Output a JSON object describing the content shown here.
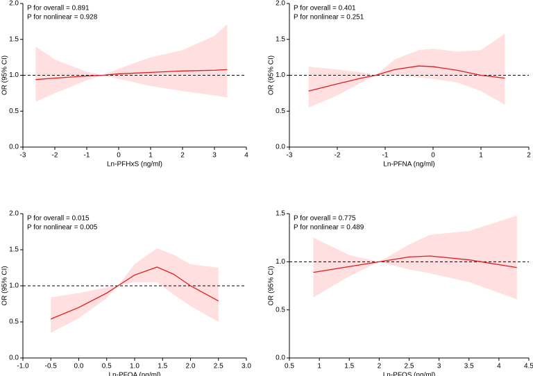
{
  "chart_data": [
    {
      "type": "line",
      "xlabel": "Ln-PFHxS (ng/ml)",
      "ylabel": "OR (95% CI)",
      "annotations": [
        "P for overall = 0.891",
        "P for nonlinear = 0.928"
      ],
      "x": [
        -2.6,
        -2,
        -1,
        -0.5,
        0,
        1,
        2,
        3,
        3.4
      ],
      "values": [
        0.94,
        0.96,
        0.99,
        1.0,
        1.02,
        1.04,
        1.06,
        1.07,
        1.08
      ],
      "lower": [
        0.63,
        0.75,
        0.93,
        1.0,
        0.95,
        0.85,
        0.78,
        0.72,
        0.69
      ],
      "upper": [
        1.4,
        1.22,
        1.05,
        1.0,
        1.09,
        1.25,
        1.35,
        1.55,
        1.71
      ],
      "color": "#e31a1c",
      "band_color": "#ffdfe0",
      "ref_line": 1,
      "xlim": [
        -3,
        4
      ],
      "xticks": [
        -3,
        -2,
        -1,
        0,
        1,
        2,
        3,
        4
      ],
      "ylim": [
        0,
        2
      ],
      "yticks": [
        {
          "value": 0,
          "label": "0.0"
        },
        {
          "value": 0.5,
          "label": "0.5"
        },
        {
          "value": 1,
          "label": "1.0"
        },
        {
          "value": 1.5,
          "label": "1.5"
        },
        {
          "value": 2,
          "label": "2.0"
        }
      ]
    },
    {
      "type": "line",
      "xlabel": "Ln-PFNA (ng/ml)",
      "ylabel": "OR (95% CI)",
      "annotations": [
        "P for overall = 0.401",
        "P for nonlinear = 0.251"
      ],
      "x": [
        -2.6,
        -2,
        -1.5,
        -1.2,
        -0.8,
        -0.3,
        0,
        0.5,
        1,
        1.5
      ],
      "values": [
        0.78,
        0.88,
        0.96,
        1.0,
        1.08,
        1.13,
        1.12,
        1.07,
        1.0,
        0.96
      ],
      "lower": [
        0.55,
        0.72,
        0.9,
        1.0,
        1.0,
        0.97,
        0.95,
        0.9,
        0.78,
        0.59
      ],
      "upper": [
        1.12,
        1.08,
        1.04,
        1.0,
        1.22,
        1.35,
        1.37,
        1.33,
        1.35,
        1.58
      ],
      "color": "#e31a1c",
      "band_color": "#ffdfe0",
      "ref_line": 1,
      "xlim": [
        -3,
        2
      ],
      "xticks": [
        -3,
        -2,
        -1,
        0,
        1,
        2
      ],
      "ylim": [
        0,
        2
      ],
      "yticks": [
        {
          "value": 0,
          "label": "0.0"
        },
        {
          "value": 0.5,
          "label": "0.5"
        },
        {
          "value": 1,
          "label": "1.0"
        },
        {
          "value": 1.5,
          "label": "1.5"
        },
        {
          "value": 2,
          "label": "2.0"
        }
      ]
    },
    {
      "type": "line",
      "xlabel": "Ln-PFOA (ng/ml)",
      "ylabel": "OR (95% CI)",
      "annotations": [
        "P for overall = 0.015",
        "P for nonlinear = 0.005"
      ],
      "x": [
        -0.5,
        0,
        0.5,
        0.7,
        1,
        1.4,
        1.7,
        2,
        2.5
      ],
      "values": [
        0.54,
        0.7,
        0.9,
        1.0,
        1.15,
        1.26,
        1.16,
        1.0,
        0.79
      ],
      "lower": [
        0.35,
        0.55,
        0.83,
        1.0,
        1.05,
        1.05,
        0.88,
        0.72,
        0.5
      ],
      "upper": [
        0.84,
        0.9,
        0.98,
        1.0,
        1.3,
        1.52,
        1.43,
        1.3,
        1.25
      ],
      "color": "#e31a1c",
      "band_color": "#ffdfe0",
      "ref_line": 1,
      "xlim": [
        -1,
        3
      ],
      "xticks": [
        {
          "value": -1,
          "label": "-1.0"
        },
        {
          "value": -0.5,
          "label": "-0.5"
        },
        {
          "value": 0,
          "label": "0.0"
        },
        {
          "value": 0.5,
          "label": "0.5"
        },
        {
          "value": 1,
          "label": "1.0"
        },
        {
          "value": 1.5,
          "label": "1.5"
        },
        {
          "value": 2,
          "label": "2.0"
        },
        {
          "value": 2.5,
          "label": "2.5"
        },
        {
          "value": 3,
          "label": "3.0"
        }
      ],
      "ylim": [
        0,
        2
      ],
      "yticks": [
        {
          "value": 0,
          "label": "0.0"
        },
        {
          "value": 0.5,
          "label": "0.5"
        },
        {
          "value": 1,
          "label": "1.0"
        },
        {
          "value": 1.5,
          "label": "1.5"
        },
        {
          "value": 2,
          "label": "2.0"
        }
      ]
    },
    {
      "type": "line",
      "xlabel": "Ln-PFOS (ng/ml)",
      "ylabel": "OR (95% CI)",
      "annotations": [
        "P for overall = 0.775",
        "P for nonlinear = 0.489"
      ],
      "x": [
        0.9,
        1.5,
        2,
        2.5,
        2.85,
        3.5,
        4.3
      ],
      "values": [
        0.89,
        0.95,
        1.0,
        1.05,
        1.06,
        1.02,
        0.94
      ],
      "lower": [
        0.63,
        0.85,
        1.0,
        0.92,
        0.88,
        0.79,
        0.61
      ],
      "upper": [
        1.25,
        1.07,
        1.0,
        1.18,
        1.28,
        1.32,
        1.48
      ],
      "color": "#e31a1c",
      "band_color": "#ffdfe0",
      "ref_line": 1,
      "xlim": [
        0.5,
        4.5
      ],
      "xticks": [
        0.5,
        1.0,
        1.5,
        2.0,
        2.5,
        3.0,
        3.5,
        4.0,
        4.5
      ],
      "ylim": [
        0,
        1.5
      ],
      "yticks": [
        {
          "value": 0,
          "label": "0.0"
        },
        {
          "value": 0.5,
          "label": "0.5"
        },
        {
          "value": 1,
          "label": "1.0"
        },
        {
          "value": 1.5,
          "label": "1.5"
        }
      ]
    }
  ]
}
